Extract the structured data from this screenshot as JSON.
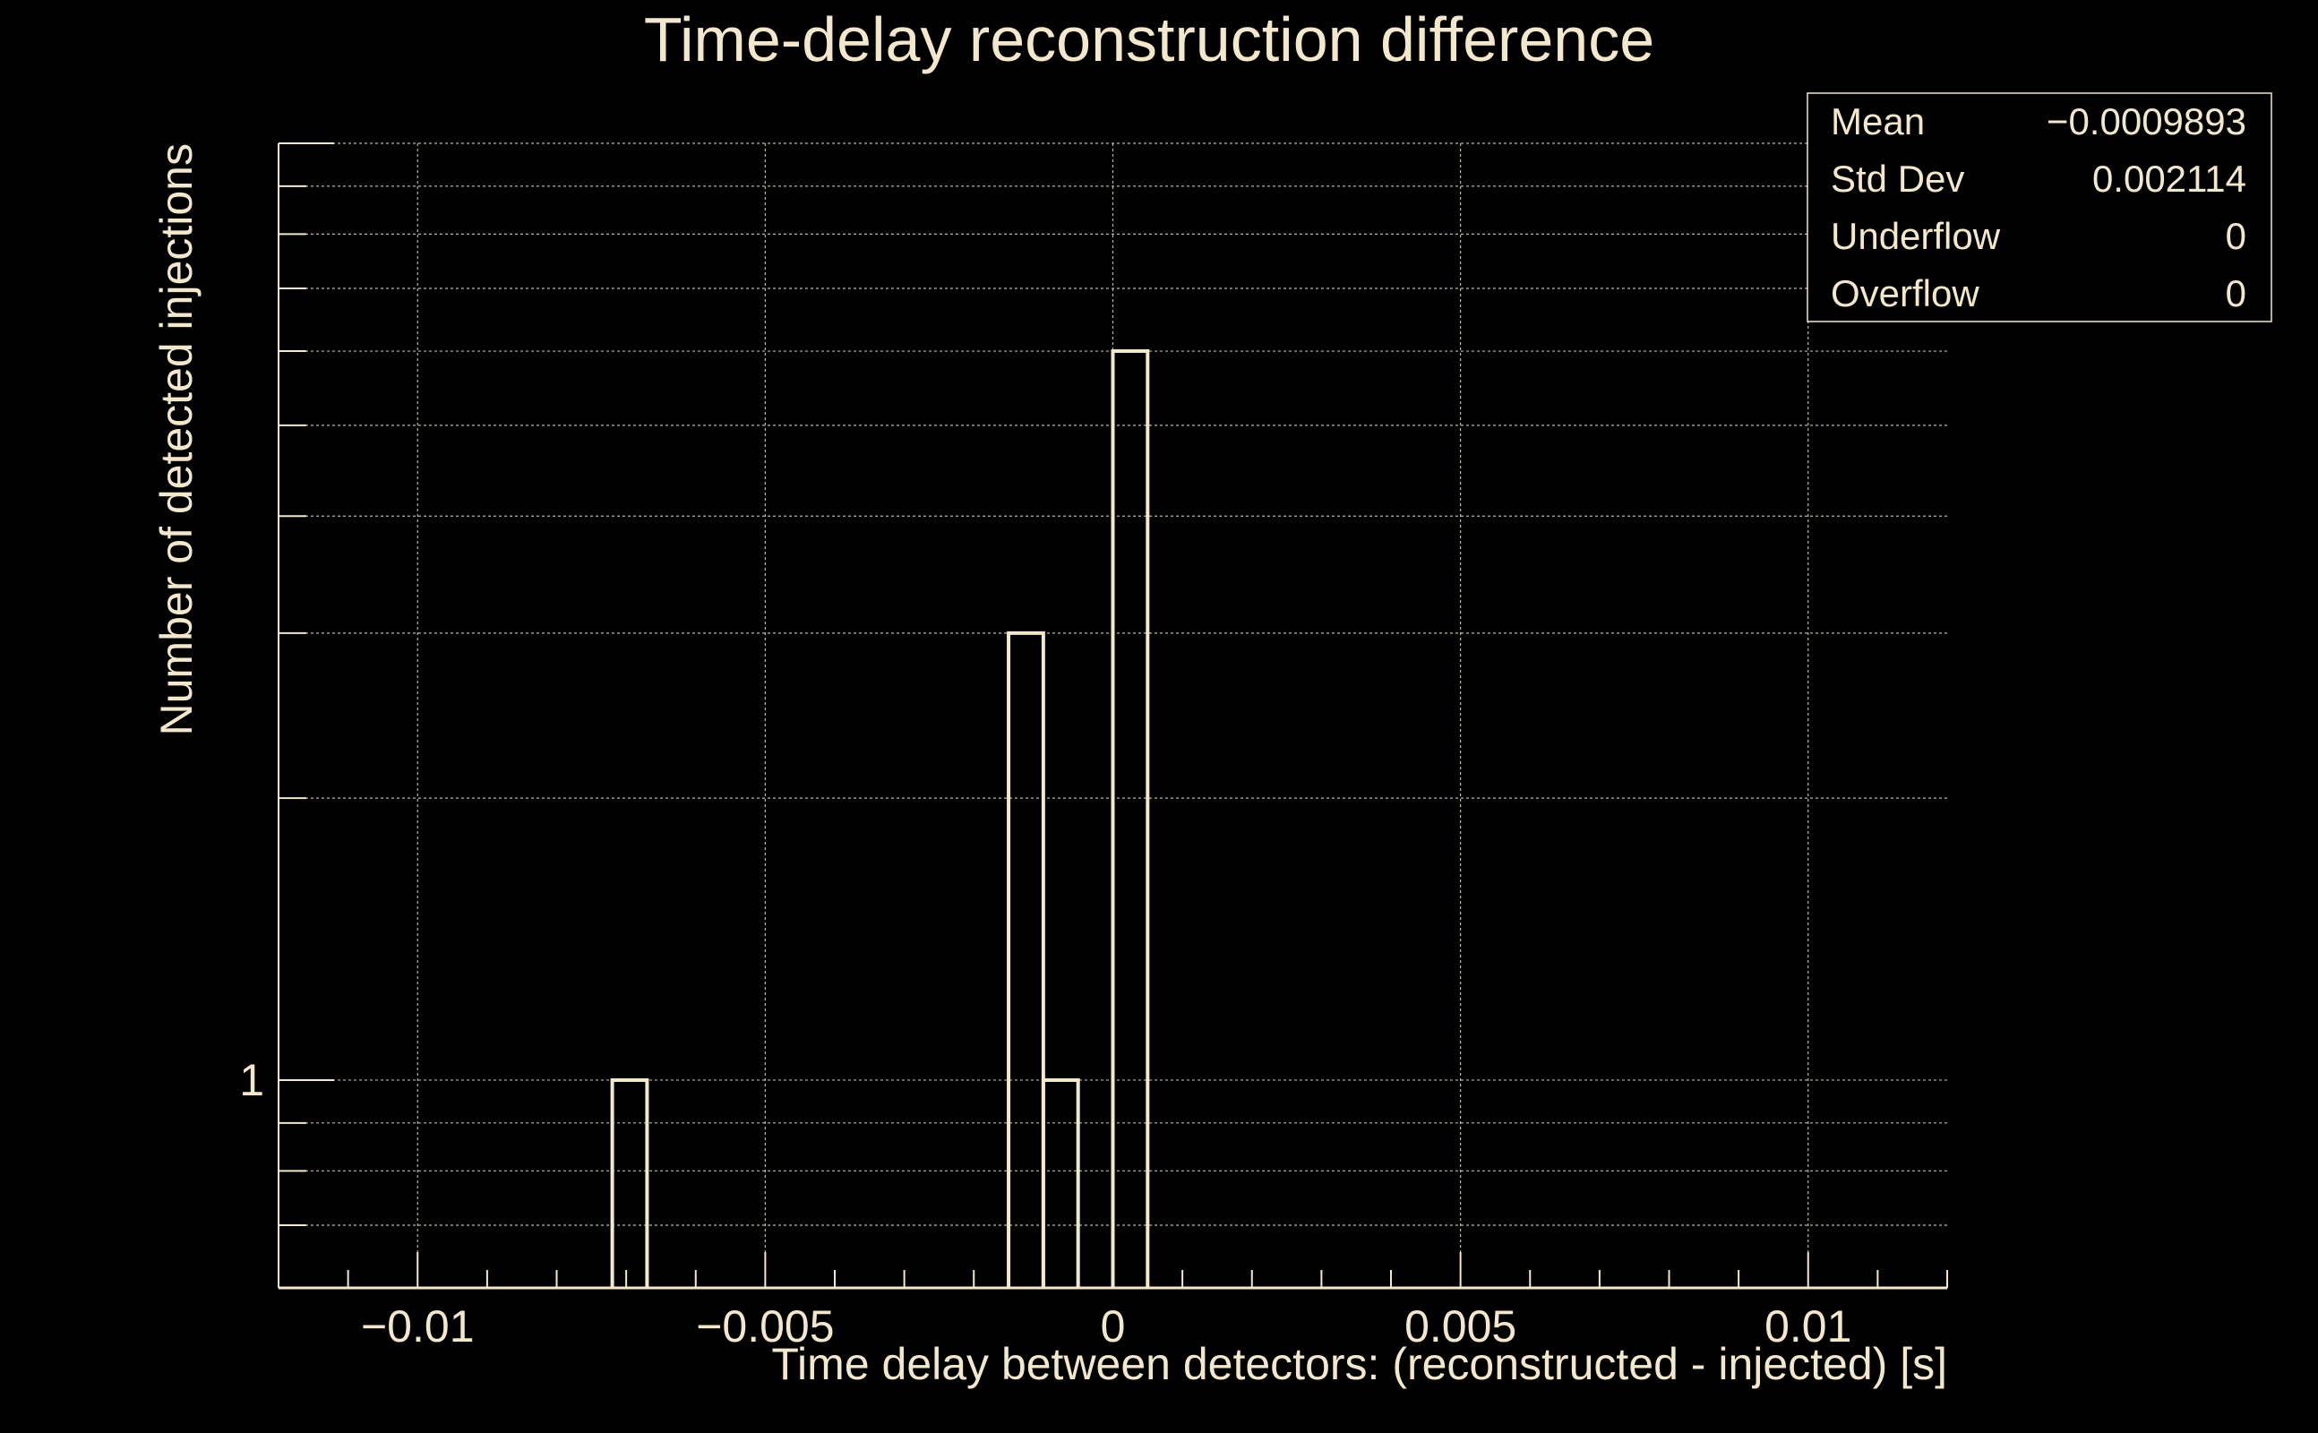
{
  "chart_data": {
    "type": "bar",
    "title": "Time-delay reconstruction difference",
    "xlabel": "Time delay between detectors: (reconstructed - injected) [s]",
    "ylabel": "Number of detected injections",
    "xlim": [
      -0.012,
      0.012
    ],
    "ylim": [
      0.6,
      10
    ],
    "log_y": true,
    "grid": true,
    "bin_width": 0.0005,
    "x_ticks": [
      -0.01,
      -0.005,
      0,
      0.005,
      0.01
    ],
    "x_tick_labels": [
      "−0.01",
      "−0.005",
      "0",
      "0.005",
      "0.01"
    ],
    "y_tick_labels": [
      {
        "value": 1,
        "label": "1"
      }
    ],
    "bins": [
      {
        "x0": -0.0072,
        "x1": -0.0067,
        "count": 1
      },
      {
        "x0": -0.0015,
        "x1": -0.001,
        "count": 3
      },
      {
        "x0": -0.001,
        "x1": -0.0005,
        "count": 1
      },
      {
        "x0": 0.0,
        "x1": 0.0005,
        "count": 6
      }
    ],
    "colors": {
      "background": "#000000",
      "foreground": "#f3e8cc",
      "grid": "#bdb6a4"
    }
  },
  "stats_box": {
    "placement": "top-right",
    "rows": [
      {
        "label": "Mean",
        "value": "−0.0009893"
      },
      {
        "label": "Std Dev",
        "value": "0.002114"
      },
      {
        "label": "Underflow",
        "value": "0"
      },
      {
        "label": "Overflow",
        "value": "0"
      }
    ]
  }
}
